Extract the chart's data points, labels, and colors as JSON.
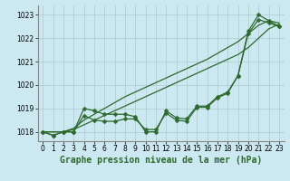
{
  "xlabel": "Graphe pression niveau de la mer (hPa)",
  "x": [
    0,
    1,
    2,
    3,
    4,
    5,
    6,
    7,
    8,
    9,
    10,
    11,
    12,
    13,
    14,
    15,
    16,
    17,
    18,
    19,
    20,
    21,
    22,
    23
  ],
  "line_smooth1": [
    1018.0,
    1018.0,
    1018.0,
    1018.1,
    1018.3,
    1018.5,
    1018.7,
    1018.9,
    1019.1,
    1019.3,
    1019.5,
    1019.7,
    1019.9,
    1020.1,
    1020.3,
    1020.5,
    1020.7,
    1020.9,
    1021.1,
    1021.3,
    1021.6,
    1022.0,
    1022.4,
    1022.6
  ],
  "line_smooth2": [
    1018.0,
    1018.0,
    1018.0,
    1018.15,
    1018.5,
    1018.75,
    1019.0,
    1019.25,
    1019.5,
    1019.7,
    1019.9,
    1020.1,
    1020.3,
    1020.5,
    1020.7,
    1020.9,
    1021.1,
    1021.35,
    1021.6,
    1021.85,
    1022.2,
    1022.55,
    1022.75,
    1022.65
  ],
  "line_wiggly1": [
    1018.0,
    1017.85,
    1018.0,
    1018.0,
    1019.0,
    1018.9,
    1018.75,
    1018.75,
    1018.75,
    1018.65,
    1018.0,
    1018.0,
    1018.9,
    1018.6,
    1018.55,
    1019.1,
    1019.1,
    1019.5,
    1019.7,
    1020.4,
    1022.3,
    1023.0,
    1022.75,
    1022.5
  ],
  "line_wiggly2": [
    1018.0,
    1017.85,
    1018.0,
    1018.0,
    1018.7,
    1018.5,
    1018.45,
    1018.45,
    1018.55,
    1018.55,
    1018.1,
    1018.1,
    1018.8,
    1018.5,
    1018.45,
    1019.05,
    1019.05,
    1019.45,
    1019.65,
    1020.4,
    1022.2,
    1022.8,
    1022.65,
    1022.5
  ],
  "ylim": [
    1017.6,
    1023.4
  ],
  "yticks": [
    1018,
    1019,
    1020,
    1021,
    1022,
    1023
  ],
  "xticks": [
    0,
    1,
    2,
    3,
    4,
    5,
    6,
    7,
    8,
    9,
    10,
    11,
    12,
    13,
    14,
    15,
    16,
    17,
    18,
    19,
    20,
    21,
    22,
    23
  ],
  "line_color": "#2d6a2d",
  "bg_color": "#cce8f0",
  "grid_color": "#aacccc",
  "marker": "D",
  "marker_size": 2.5,
  "linewidth": 0.9,
  "xlabel_fontsize": 7,
  "tick_fontsize": 5.5,
  "xlabel_color": "#2d6a2d"
}
